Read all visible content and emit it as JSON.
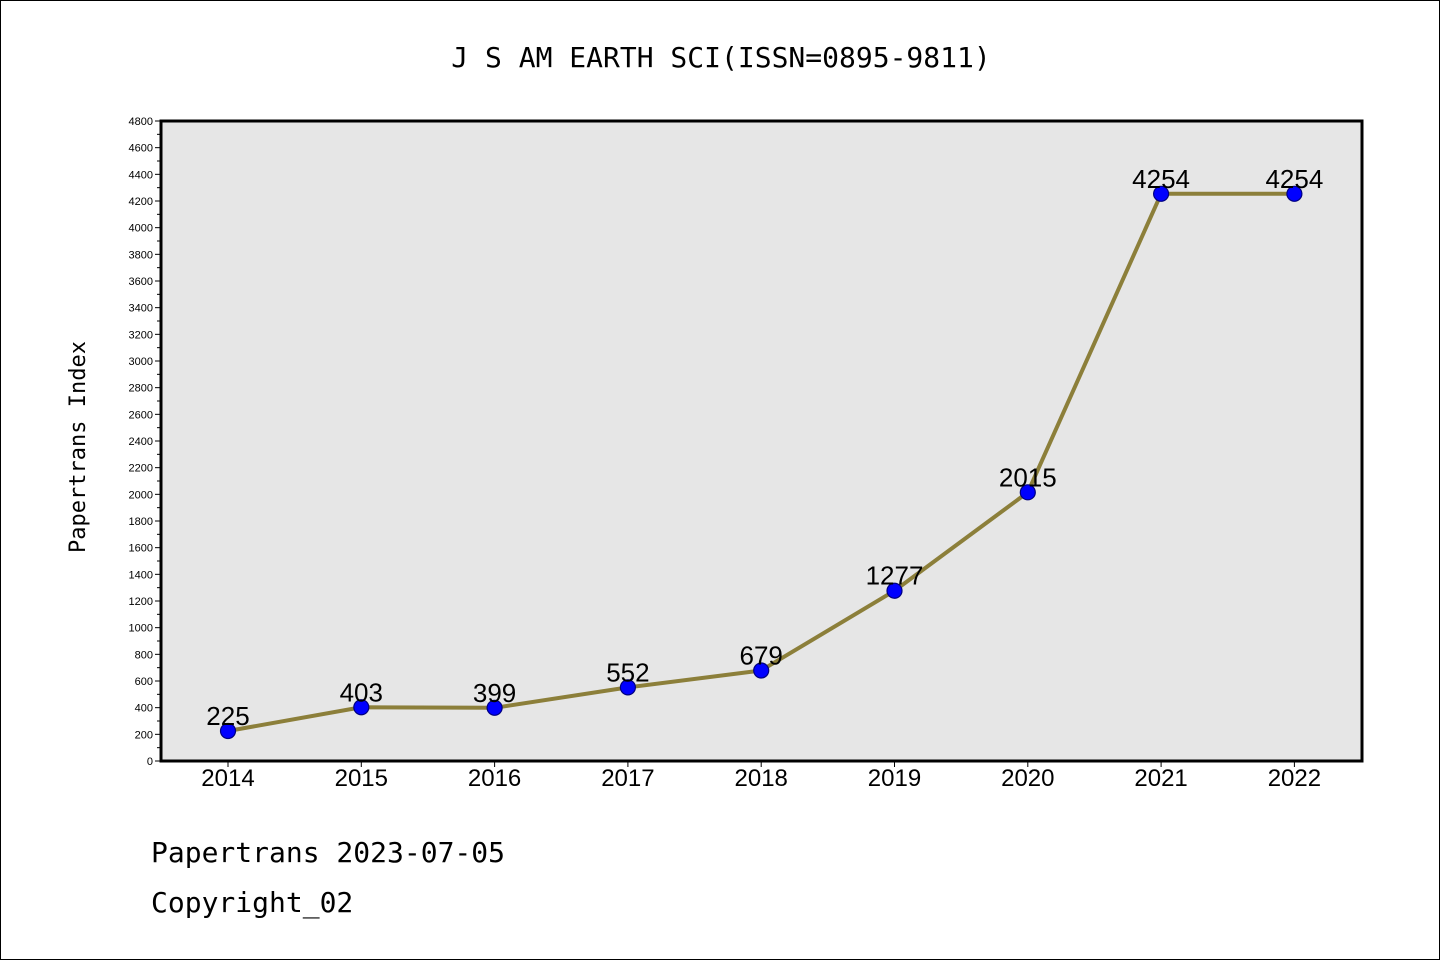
{
  "chart_data": {
    "type": "line",
    "title": "J S AM EARTH SCI(ISSN=0895-9811)",
    "xlabel": "",
    "ylabel": "Papertrans Index",
    "categories": [
      "2014",
      "2015",
      "2016",
      "2017",
      "2018",
      "2019",
      "2020",
      "2021",
      "2022"
    ],
    "series": [
      {
        "values": [
          225,
          403,
          399,
          552,
          679,
          1277,
          2015,
          4254,
          4254
        ],
        "data_labels": [
          "225",
          "403",
          "399",
          "552",
          "679",
          "1277",
          "2015",
          "4254",
          "4254"
        ]
      }
    ],
    "ylim": [
      0,
      4800
    ],
    "yticks": [
      "0",
      "200",
      "400",
      "600",
      "800",
      "1000",
      "1200",
      "1400",
      "1600",
      "1800",
      "2000",
      "2200",
      "2400",
      "2600",
      "2800",
      "3000",
      "3200",
      "3400",
      "3600",
      "3800",
      "4000",
      "4200",
      "4400",
      "4600",
      "4800"
    ],
    "grid": false,
    "legend": "none",
    "colors": {
      "line": "#8c7f3a",
      "marker_fill": "#0000ff",
      "marker_stroke": "#000080",
      "plot_background": "#e6e6e6",
      "frame": "#000000"
    }
  },
  "footer": {
    "line1": "Papertrans 2023-07-05",
    "line2": "Copyright_02"
  }
}
